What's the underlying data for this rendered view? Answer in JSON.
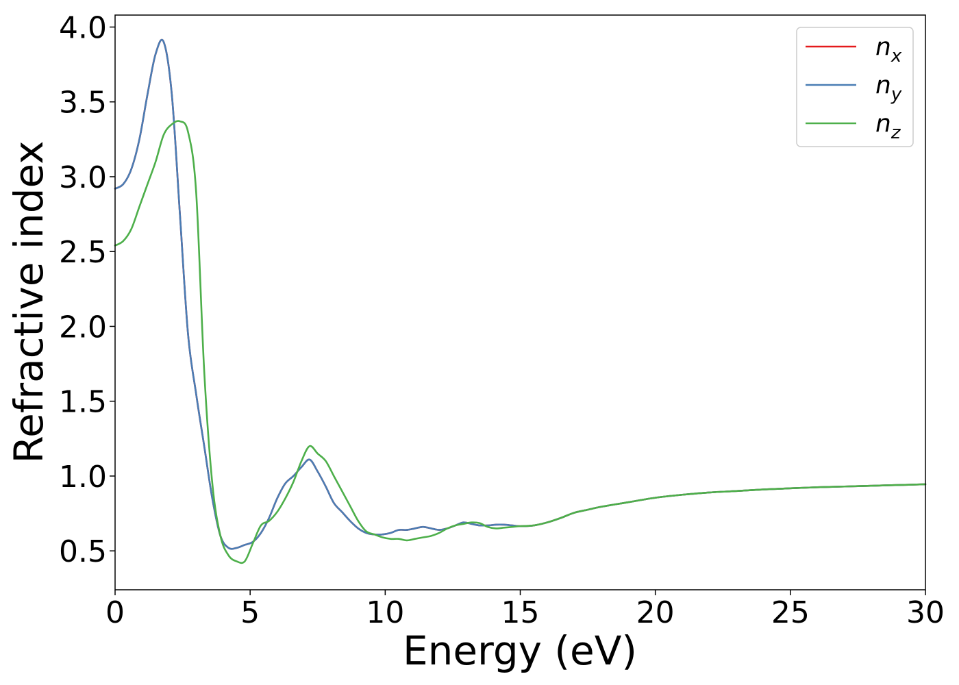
{
  "chart_data": {
    "type": "line",
    "xlabel": "Energy (eV)",
    "ylabel": "Refractive index",
    "xlim": [
      0,
      30
    ],
    "ylim": [
      0.24,
      4.08
    ],
    "xticks": [
      "0",
      "5",
      "10",
      "15",
      "20",
      "25",
      "30"
    ],
    "yticks": [
      "0.5",
      "1.0",
      "1.5",
      "2.0",
      "2.5",
      "3.0",
      "3.5",
      "4.0"
    ],
    "grid": false,
    "legend_position": "top-right",
    "series": [
      {
        "name": "n",
        "sub": "x",
        "color": "#e41a1c",
        "x": [
          0,
          0.3,
          0.6,
          0.9,
          1.2,
          1.5,
          1.8,
          2.1,
          2.4,
          2.7,
          3.0,
          3.3,
          3.6,
          3.9,
          4.2,
          4.5,
          4.8,
          5.1,
          5.4,
          5.7,
          6.0,
          6.3,
          6.6,
          6.9,
          7.2,
          7.5,
          7.8,
          8.1,
          8.4,
          8.7,
          9.0,
          9.3,
          9.6,
          9.9,
          10.2,
          10.5,
          10.8,
          11.1,
          11.4,
          11.7,
          12.0,
          12.3,
          12.6,
          12.9,
          13.2,
          13.5,
          13.8,
          14.1,
          14.4,
          14.7,
          15.0,
          15.5,
          16.0,
          16.5,
          17.0,
          17.5,
          18.0,
          19.0,
          20.0,
          21.0,
          22.0,
          23.0,
          24.0,
          25.0,
          26.0,
          27.0,
          28.0,
          29.0,
          30.0
        ],
        "values": [
          2.92,
          2.95,
          3.05,
          3.25,
          3.55,
          3.82,
          3.9,
          3.55,
          2.75,
          1.95,
          1.55,
          1.2,
          0.85,
          0.6,
          0.52,
          0.52,
          0.54,
          0.56,
          0.62,
          0.72,
          0.85,
          0.95,
          1.0,
          1.06,
          1.11,
          1.03,
          0.93,
          0.82,
          0.76,
          0.7,
          0.65,
          0.62,
          0.61,
          0.61,
          0.62,
          0.64,
          0.64,
          0.65,
          0.66,
          0.65,
          0.64,
          0.65,
          0.67,
          0.69,
          0.68,
          0.67,
          0.67,
          0.675,
          0.675,
          0.67,
          0.665,
          0.67,
          0.69,
          0.72,
          0.755,
          0.775,
          0.795,
          0.825,
          0.855,
          0.875,
          0.89,
          0.9,
          0.91,
          0.918,
          0.925,
          0.93,
          0.935,
          0.94,
          0.945
        ]
      },
      {
        "name": "n",
        "sub": "y",
        "color": "#4a7db4",
        "x": [
          0,
          0.3,
          0.6,
          0.9,
          1.2,
          1.5,
          1.8,
          2.1,
          2.4,
          2.7,
          3.0,
          3.3,
          3.6,
          3.9,
          4.2,
          4.5,
          4.8,
          5.1,
          5.4,
          5.7,
          6.0,
          6.3,
          6.6,
          6.9,
          7.2,
          7.5,
          7.8,
          8.1,
          8.4,
          8.7,
          9.0,
          9.3,
          9.6,
          9.9,
          10.2,
          10.5,
          10.8,
          11.1,
          11.4,
          11.7,
          12.0,
          12.3,
          12.6,
          12.9,
          13.2,
          13.5,
          13.8,
          14.1,
          14.4,
          14.7,
          15.0,
          15.5,
          16.0,
          16.5,
          17.0,
          17.5,
          18.0,
          19.0,
          20.0,
          21.0,
          22.0,
          23.0,
          24.0,
          25.0,
          26.0,
          27.0,
          28.0,
          29.0,
          30.0
        ],
        "values": [
          2.92,
          2.95,
          3.05,
          3.25,
          3.55,
          3.82,
          3.9,
          3.55,
          2.75,
          1.95,
          1.55,
          1.2,
          0.85,
          0.6,
          0.52,
          0.52,
          0.54,
          0.56,
          0.62,
          0.72,
          0.85,
          0.95,
          1.0,
          1.06,
          1.11,
          1.03,
          0.93,
          0.82,
          0.76,
          0.7,
          0.65,
          0.62,
          0.61,
          0.61,
          0.62,
          0.64,
          0.64,
          0.65,
          0.66,
          0.65,
          0.64,
          0.65,
          0.67,
          0.69,
          0.68,
          0.67,
          0.67,
          0.675,
          0.675,
          0.67,
          0.665,
          0.67,
          0.69,
          0.72,
          0.755,
          0.775,
          0.795,
          0.825,
          0.855,
          0.875,
          0.89,
          0.9,
          0.91,
          0.918,
          0.925,
          0.93,
          0.935,
          0.94,
          0.945
        ]
      },
      {
        "name": "n",
        "sub": "z",
        "color": "#4daf4a",
        "x": [
          0,
          0.3,
          0.6,
          0.9,
          1.2,
          1.5,
          1.8,
          2.1,
          2.4,
          2.7,
          3.0,
          3.3,
          3.6,
          3.9,
          4.2,
          4.5,
          4.8,
          5.1,
          5.4,
          5.7,
          6.0,
          6.3,
          6.6,
          6.9,
          7.2,
          7.5,
          7.8,
          8.1,
          8.4,
          8.7,
          9.0,
          9.3,
          9.6,
          9.9,
          10.2,
          10.5,
          10.8,
          11.1,
          11.4,
          11.7,
          12.0,
          12.3,
          12.6,
          12.9,
          13.2,
          13.5,
          13.8,
          14.1,
          14.4,
          14.7,
          15.0,
          15.5,
          16.0,
          16.5,
          17.0,
          17.5,
          18.0,
          19.0,
          20.0,
          21.0,
          22.0,
          23.0,
          24.0,
          25.0,
          26.0,
          27.0,
          28.0,
          29.0,
          30.0
        ],
        "values": [
          2.54,
          2.57,
          2.65,
          2.8,
          2.95,
          3.1,
          3.28,
          3.35,
          3.37,
          3.3,
          2.9,
          1.7,
          0.95,
          0.6,
          0.47,
          0.43,
          0.43,
          0.55,
          0.67,
          0.7,
          0.76,
          0.85,
          0.96,
          1.1,
          1.2,
          1.15,
          1.1,
          1.0,
          0.9,
          0.8,
          0.7,
          0.63,
          0.61,
          0.59,
          0.58,
          0.58,
          0.57,
          0.58,
          0.59,
          0.6,
          0.62,
          0.65,
          0.67,
          0.68,
          0.69,
          0.685,
          0.66,
          0.65,
          0.655,
          0.66,
          0.665,
          0.67,
          0.69,
          0.72,
          0.755,
          0.775,
          0.795,
          0.825,
          0.855,
          0.875,
          0.89,
          0.9,
          0.91,
          0.918,
          0.925,
          0.93,
          0.935,
          0.94,
          0.945
        ]
      }
    ]
  }
}
